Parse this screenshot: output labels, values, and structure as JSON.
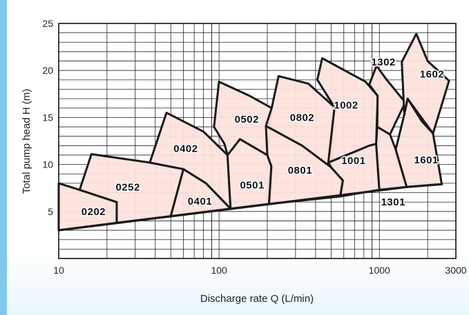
{
  "chart_data": {
    "type": "area",
    "title": "",
    "xlabel": "Discharge rate Q (L/min)",
    "ylabel": "Total pump head H (m)",
    "x_scale": "log",
    "xlim": [
      10,
      3000
    ],
    "ylim": [
      0,
      25
    ],
    "x_ticks": [
      "10",
      "100",
      "1000",
      "3000"
    ],
    "y_ticks": [
      "5",
      "10",
      "15",
      "20",
      "25"
    ],
    "grid": true,
    "fill_color": "#fde3dd",
    "edge_color": "#1a1a1a",
    "regions": [
      {
        "name": "0202",
        "outline": [
          [
            10,
            3
          ],
          [
            10,
            8
          ],
          [
            13.5,
            7.3
          ],
          [
            23,
            6
          ],
          [
            23,
            3.8
          ]
        ],
        "label_at": [
          16.5,
          5
        ]
      },
      {
        "name": "0252",
        "outline": [
          [
            13.5,
            7.3
          ],
          [
            16,
            11.1
          ],
          [
            37,
            10.2
          ],
          [
            60,
            9.5
          ],
          [
            50,
            4.5
          ],
          [
            23,
            3.8
          ],
          [
            23,
            6
          ]
        ],
        "label_at": [
          27,
          7.6
        ]
      },
      {
        "name": "0401",
        "outline": [
          [
            50,
            4.5
          ],
          [
            60,
            9.5
          ],
          [
            83,
            8
          ],
          [
            118,
            5.3
          ]
        ],
        "label_at": [
          76,
          6.1
        ]
      },
      {
        "name": "0402",
        "outline": [
          [
            37,
            10.2
          ],
          [
            47,
            15.5
          ],
          [
            80,
            13.5
          ],
          [
            113,
            11
          ],
          [
            118,
            5.3
          ],
          [
            83,
            8
          ],
          [
            60,
            9.5
          ]
        ],
        "label_at": [
          62,
          11.7
        ]
      },
      {
        "name": "0501",
        "outline": [
          [
            118,
            5.3
          ],
          [
            113,
            11
          ],
          [
            135,
            12.7
          ],
          [
            200,
            11
          ],
          [
            212,
            9.8
          ],
          [
            205,
            5.8
          ]
        ],
        "label_at": [
          161,
          7.8
        ]
      },
      {
        "name": "0502",
        "outline": [
          [
            93,
            14
          ],
          [
            100,
            18.8
          ],
          [
            155,
            17.3
          ],
          [
            213,
            16
          ],
          [
            200,
            11
          ],
          [
            135,
            12.7
          ],
          [
            113,
            11
          ],
          [
            108,
            12.2
          ]
        ],
        "label_at": [
          149,
          14.8
        ]
      },
      {
        "name": "0801",
        "outline": [
          [
            205,
            5.8
          ],
          [
            212,
            9.8
          ],
          [
            200,
            11
          ],
          [
            196,
            14.1
          ],
          [
            330,
            12
          ],
          [
            500,
            9.7
          ],
          [
            592,
            8.3
          ],
          [
            570,
            6.6
          ]
        ],
        "label_at": [
          320,
          9.4
        ]
      },
      {
        "name": "0802",
        "outline": [
          [
            196,
            14.1
          ],
          [
            213,
            16
          ],
          [
            235,
            19.4
          ],
          [
            360,
            18.6
          ],
          [
            525,
            16.1
          ],
          [
            500,
            9.7
          ],
          [
            330,
            12
          ]
        ],
        "label_at": [
          330,
          15
        ]
      },
      {
        "name": "1001",
        "outline": [
          [
            570,
            6.6
          ],
          [
            592,
            8.3
          ],
          [
            500,
            9.7
          ],
          [
            480,
            10.2
          ],
          [
            865,
            12
          ],
          [
            955,
            12.2
          ],
          [
            1000,
            7.3
          ]
        ],
        "label_at": [
          690,
          10.4
        ]
      },
      {
        "name": "1002",
        "outline": [
          [
            525,
            16.1
          ],
          [
            480,
            10.2
          ],
          [
            865,
            12
          ],
          [
            955,
            12.2
          ],
          [
            975,
            17.3
          ],
          [
            820,
            18.8
          ],
          [
            440,
            21.3
          ],
          [
            410,
            19
          ]
        ],
        "label_at": [
          620,
          16.3
        ]
      },
      {
        "name": "1301",
        "outline": [
          [
            1000,
            7.3
          ],
          [
            955,
            12.2
          ],
          [
            970,
            14
          ],
          [
            1165,
            13.2
          ],
          [
            1265,
            11.6
          ],
          [
            1480,
            7.6
          ]
        ],
        "label_at": [
          1220,
          6
        ]
      },
      {
        "name": "1302",
        "outline": [
          [
            975,
            17.3
          ],
          [
            865,
            18.5
          ],
          [
            960,
            20.5
          ],
          [
            1100,
            19.1
          ],
          [
            1450,
            16.6
          ],
          [
            1165,
            13.2
          ],
          [
            970,
            14
          ]
        ],
        "label_at": [
          1060,
          20.9
        ]
      },
      {
        "name": "1601",
        "outline": [
          [
            1480,
            7.6
          ],
          [
            1265,
            11.6
          ],
          [
            1430,
            15.3
          ],
          [
            1500,
            17
          ],
          [
            1840,
            14.6
          ],
          [
            2160,
            13.3
          ],
          [
            2450,
            7.9
          ]
        ],
        "label_at": [
          1960,
          10.5
        ]
      },
      {
        "name": "1602",
        "outline": [
          [
            1500,
            17
          ],
          [
            1430,
            15.3
          ],
          [
            1380,
            20.9
          ],
          [
            1700,
            23.9
          ],
          [
            2000,
            21
          ],
          [
            2720,
            18.9
          ],
          [
            2160,
            13.3
          ]
        ],
        "label_at": [
          2130,
          19.6
        ]
      }
    ],
    "boundary_lines": [
      [
        [
          10,
          3
        ],
        [
          1480,
          7.6
        ],
        [
          2450,
          7.9
        ]
      ]
    ]
  }
}
